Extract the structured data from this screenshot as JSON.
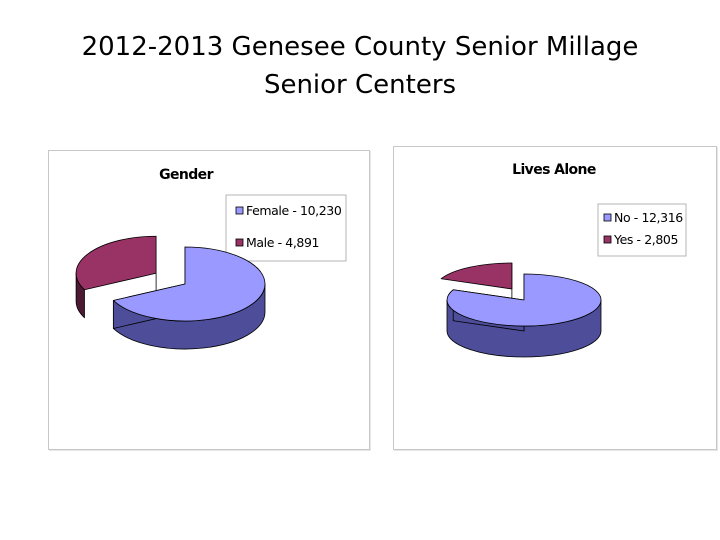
{
  "slide": {
    "title_line1": "2012-2013 Genesee County Senior Millage",
    "title_line2": "Senior Centers"
  },
  "colors": {
    "series_a_top": "#9999ff",
    "series_a_side": "#4d4d99",
    "series_b_top": "#993366",
    "series_b_side": "#4d1a33",
    "edge": "#000000",
    "legend_border": "#b4b4b4"
  },
  "chart_data": [
    {
      "type": "pie",
      "style": "3d-exploded",
      "title": "Gender",
      "series": [
        {
          "name": "Female",
          "value": 10230,
          "label": "Female - 10,230"
        },
        {
          "name": "Male",
          "value": 4891,
          "label": "Male - 4,891"
        }
      ],
      "legend_position": "top-right"
    },
    {
      "type": "pie",
      "style": "3d-exploded",
      "title": "Lives Alone",
      "series": [
        {
          "name": "No",
          "value": 12316,
          "label": "No - 12,316"
        },
        {
          "name": "Yes",
          "value": 2805,
          "label": "Yes - 2,805"
        }
      ],
      "legend_position": "top-right"
    }
  ]
}
